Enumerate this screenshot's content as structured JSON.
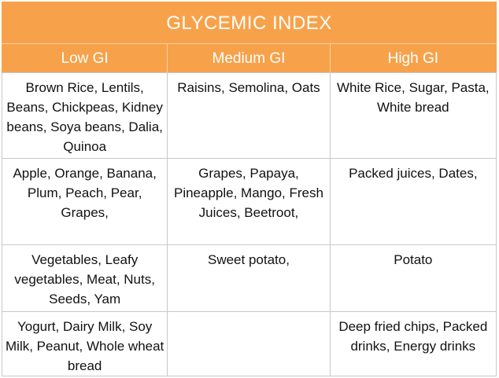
{
  "title": "GLYCEMIC INDEX",
  "columns": [
    "Low GI",
    "Medium GI",
    "High GI"
  ],
  "rows": [
    [
      "Brown Rice, Lentils, Beans, Chickpeas, Kidney beans, Soya beans, Dalia, Quinoa",
      "Raisins, Semolina, Oats",
      "White Rice, Sugar, Pasta, White bread"
    ],
    [
      "Apple, Orange, Banana, Plum, Peach, Pear, Grapes,",
      "Grapes, Papaya, Pineapple, Mango, Fresh Juices, Beetroot,",
      "Packed juices, Dates,"
    ],
    [
      "Vegetables, Leafy vegetables, Meat, Nuts, Seeds, Yam",
      "Sweet potato,",
      "Potato"
    ],
    [
      "Yogurt, Dairy Milk, Soy Milk, Peanut, Whole wheat bread",
      "",
      "Deep fried chips, Packed drinks, Energy drinks"
    ]
  ],
  "colors": {
    "header_bg": "#f7a24a",
    "header_text": "#ffffff",
    "grid": "#c8c8c8"
  }
}
